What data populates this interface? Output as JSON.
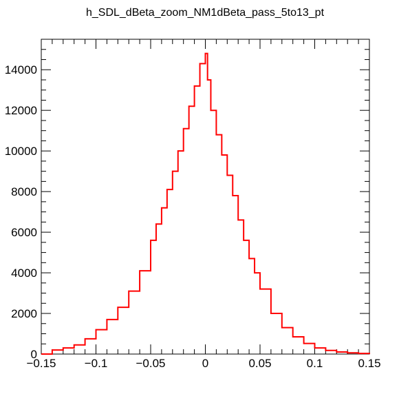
{
  "chart_data": {
    "type": "line",
    "title": "h_SDL_dBeta_zoom_NM1dBeta_pass_5to13_pt",
    "xlabel": "",
    "ylabel": "",
    "xlim": [
      -0.15,
      0.15
    ],
    "ylim": [
      0,
      15500
    ],
    "x_ticks": [
      -0.15,
      -0.1,
      -0.05,
      0,
      0.05,
      0.1,
      0.15
    ],
    "x_tick_labels": [
      "−0.15",
      "−0.1",
      "−0.05",
      "0",
      "0.05",
      "0.1",
      "0.15"
    ],
    "y_ticks": [
      0,
      2000,
      4000,
      6000,
      8000,
      10000,
      12000,
      14000
    ],
    "y_tick_labels": [
      "0",
      "2000",
      "4000",
      "6000",
      "8000",
      "10000",
      "12000",
      "14000"
    ],
    "grid": false,
    "histogram": "step",
    "series": [
      {
        "color": "#ff0000",
        "x": [
          -0.15,
          -0.14,
          -0.13,
          -0.12,
          -0.11,
          -0.1,
          -0.09,
          -0.08,
          -0.07,
          -0.06,
          -0.05,
          -0.045,
          -0.04,
          -0.035,
          -0.03,
          -0.025,
          -0.02,
          -0.015,
          -0.01,
          -0.005,
          0,
          0.002,
          0.005,
          0.01,
          0.015,
          0.02,
          0.025,
          0.03,
          0.035,
          0.04,
          0.045,
          0.05,
          0.06,
          0.07,
          0.08,
          0.09,
          0.1,
          0.11,
          0.12,
          0.13,
          0.14,
          0.15
        ],
        "y": [
          0,
          200,
          300,
          450,
          750,
          1200,
          1700,
          2300,
          3100,
          4100,
          5600,
          6400,
          7200,
          8100,
          9000,
          10000,
          11100,
          12200,
          13200,
          14300,
          14800,
          13500,
          12000,
          10800,
          9800,
          8800,
          7800,
          6600,
          5600,
          4700,
          4000,
          3200,
          2000,
          1300,
          850,
          520,
          300,
          180,
          100,
          60,
          30,
          0
        ]
      }
    ]
  }
}
